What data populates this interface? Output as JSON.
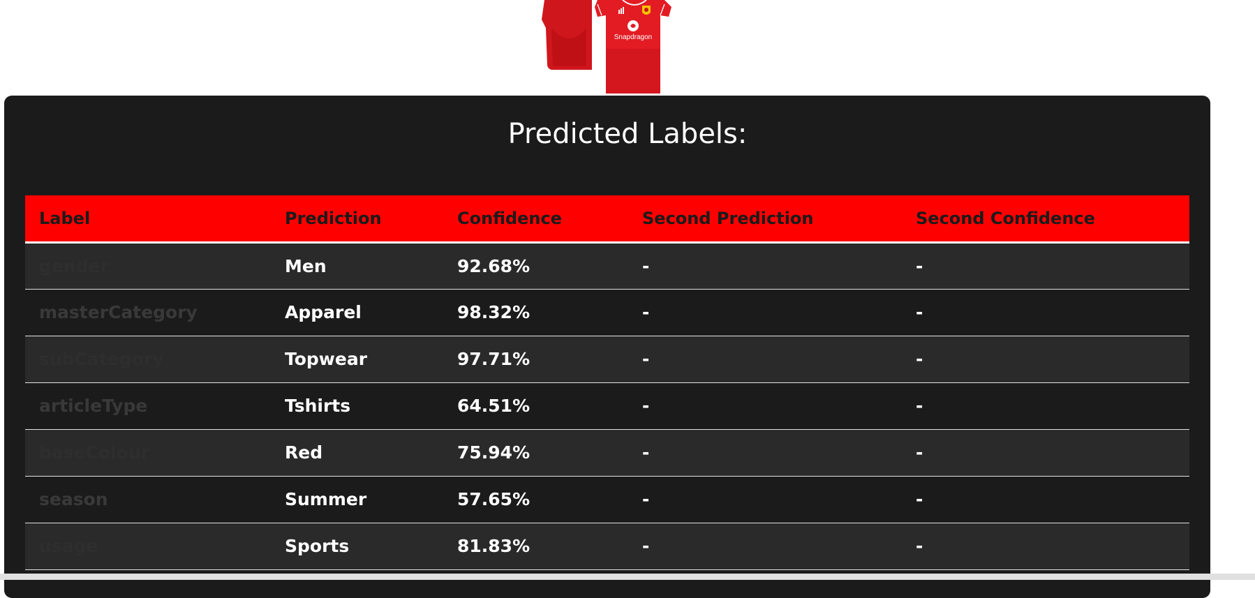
{
  "product_image": {
    "sponsor_text": "Snapdragon",
    "colors": {
      "shirt": "#e31b23",
      "shirt_shade": "#b40d13",
      "trim": "#f2f2f2"
    }
  },
  "panel": {
    "title": "Predicted Labels:"
  },
  "table": {
    "columns": [
      "Label",
      "Prediction",
      "Confidence",
      "Second Prediction",
      "Second Confidence"
    ],
    "rows": [
      {
        "label": "gender",
        "prediction": "Men",
        "confidence": "92.68%",
        "second_prediction": "-",
        "second_confidence": "-"
      },
      {
        "label": "masterCategory",
        "prediction": "Apparel",
        "confidence": "98.32%",
        "second_prediction": "-",
        "second_confidence": "-"
      },
      {
        "label": "subCategory",
        "prediction": "Topwear",
        "confidence": "97.71%",
        "second_prediction": "-",
        "second_confidence": "-"
      },
      {
        "label": "articleType",
        "prediction": "Tshirts",
        "confidence": "64.51%",
        "second_prediction": "-",
        "second_confidence": "-"
      },
      {
        "label": "baseColour",
        "prediction": "Red",
        "confidence": "75.94%",
        "second_prediction": "-",
        "second_confidence": "-"
      },
      {
        "label": "season",
        "prediction": "Summer",
        "confidence": "57.65%",
        "second_prediction": "-",
        "second_confidence": "-"
      },
      {
        "label": "usage",
        "prediction": "Sports",
        "confidence": "81.83%",
        "second_prediction": "-",
        "second_confidence": "-"
      }
    ]
  },
  "colors": {
    "panel_bg": "#1b1b1b",
    "header_bg": "#ff0000",
    "header_text": "#1b1b1b",
    "row_alt_bg": "#2a2a2a",
    "value_text": "#ffffff",
    "label_text": "#2e2e2e"
  }
}
